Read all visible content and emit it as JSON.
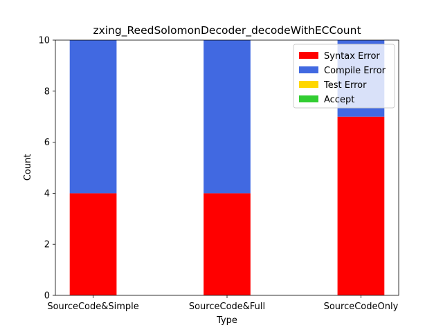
{
  "chart_data": {
    "type": "bar",
    "stacked": true,
    "title": "zxing_ReedSolomonDecoder_decodeWithECCount",
    "xlabel": "Type",
    "ylabel": "Count",
    "categories": [
      "SourceCode&Simple",
      "SourceCode&Full",
      "SourceCodeOnly"
    ],
    "ylim": [
      0,
      10
    ],
    "yticks": [
      0,
      2,
      4,
      6,
      8,
      10
    ],
    "series": [
      {
        "name": "Syntax Error",
        "color": "#ff0000",
        "values": [
          4,
          4,
          7
        ]
      },
      {
        "name": "Compile Error",
        "color": "#4169e1",
        "values": [
          6,
          6,
          3
        ]
      },
      {
        "name": "Test Error",
        "color": "#ffd700",
        "values": [
          0,
          0,
          0
        ]
      },
      {
        "name": "Accept",
        "color": "#32cd32",
        "values": [
          0,
          0,
          0
        ]
      }
    ],
    "legend_position": "top-right",
    "grid": false
  }
}
